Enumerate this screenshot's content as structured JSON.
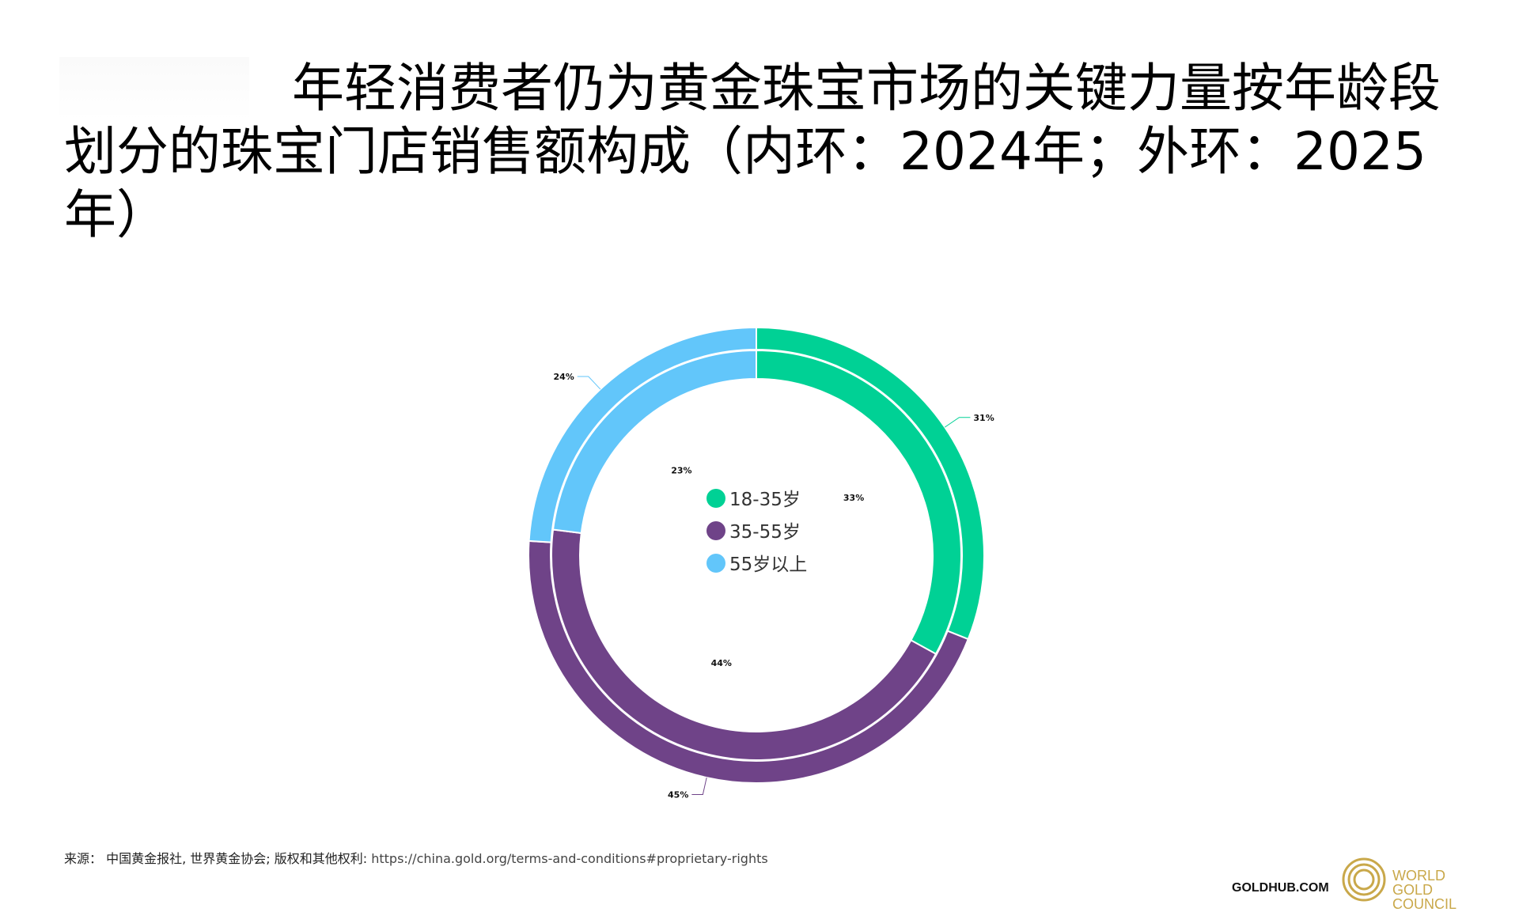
{
  "chart_data": {
    "type": "pie",
    "title": "年轻消费者仍为黄金珠宝市场的关键力量按年龄段划分的珠宝门店销售额构成（内环：2024年；外环：2025年）",
    "categories": [
      "18-35岁",
      "35-55岁",
      "55岁以上"
    ],
    "colors": [
      "#00d195",
      "#6f4388",
      "#62c6fa"
    ],
    "series": [
      {
        "ring": "inner",
        "values": [
          33,
          44,
          23
        ],
        "labels": [
          "33%",
          "44%",
          "23%"
        ]
      },
      {
        "ring": "outer",
        "values": [
          31,
          45,
          24
        ],
        "labels": [
          "31%",
          "45%",
          "24%"
        ]
      }
    ],
    "legend_placement": "center"
  },
  "footer": {
    "source_prefix": "来源： 中国黄金报社, 世界黄金协会; 版权和其他权利: ",
    "source_url": "https://china.gold.org/terms-and-conditions#proprietary-rights",
    "goldhub": "GOLDHUB.COM",
    "logo_lines": [
      "WORLD",
      "GOLD",
      "COUNCIL"
    ],
    "logo_color": "#c9a84a"
  }
}
